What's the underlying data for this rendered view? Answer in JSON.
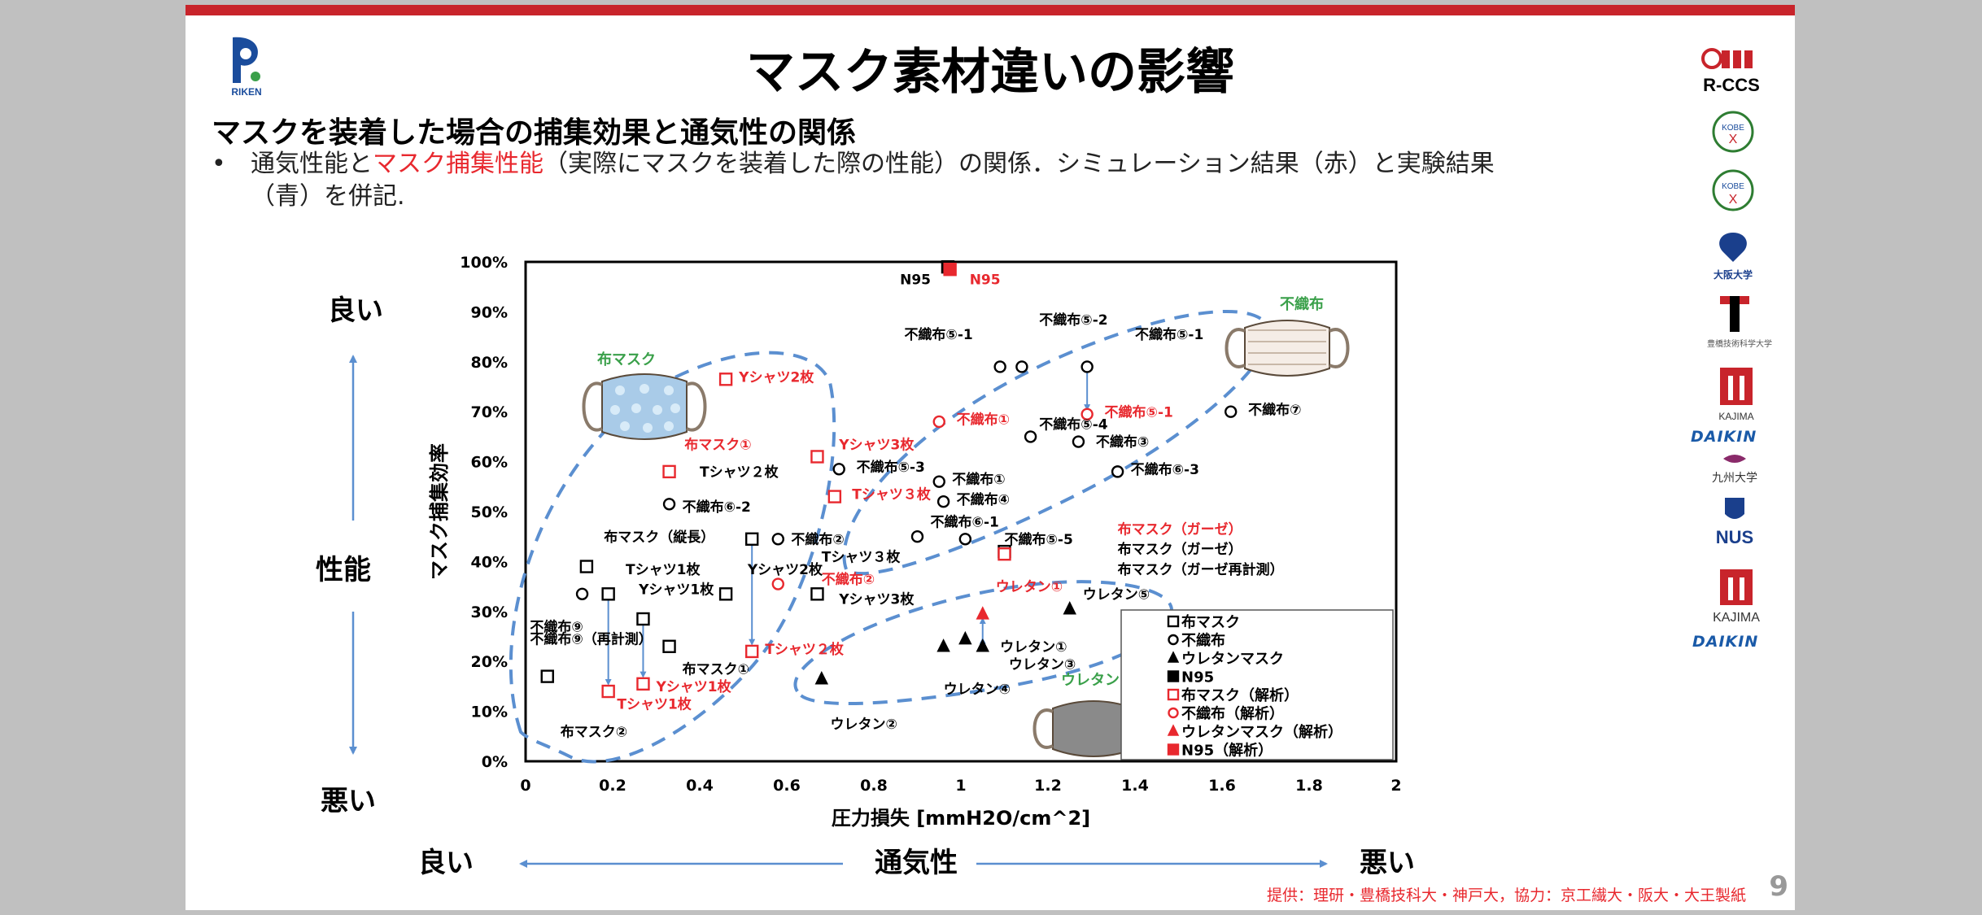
{
  "slide": {
    "title": "マスク素材違いの影響",
    "heading": "マスクを装着した場合の捕集効果と通気性の関係",
    "bullet_dot": "•",
    "bullet_part1": "通気性能と",
    "bullet_part2": "マスク捕集性能",
    "bullet_part3": "（実際にマスクを装着した際の性能）の関係．シミュレーション結果（赤）と実験結果",
    "bullet_line2": "（青）を併記.",
    "source": "提供：理研・豊橋技科大・神戸大，協力：京工繊大・阪大・大王製紙",
    "page": "9",
    "colors": {
      "accent": "#c8242b",
      "red": "#e8282e",
      "arrow": "#5b8fd0",
      "green": "#3aa04a"
    }
  },
  "logos": {
    "riken": "RIKEN",
    "rccs": "R-CCS",
    "kobe": "KOBE",
    "kobe_tech": "KOBE",
    "osaka": "大阪大学",
    "toyohashi": "豊橋技術科学大学",
    "kajima1": "KAJIMA",
    "daikin1": "DAIKIN",
    "kyushu": "九州大学",
    "nus": "NUS",
    "kajima2": "KAJIMA",
    "daikin2": "DAIKIN"
  },
  "axis_side": {
    "y_good": "良い",
    "y_mid": "性能",
    "y_bad": "悪い",
    "x_good": "良い",
    "x_mid": "通気性",
    "x_bad": "悪い"
  },
  "chart_data": {
    "type": "scatter",
    "xlabel": "圧力損失 [mmH2O/cm^2]",
    "ylabel": "マスク捕集効率",
    "xlim": [
      0,
      2
    ],
    "ylim": [
      0,
      1
    ],
    "x_ticks": [
      "0",
      "0.2",
      "0.4",
      "0.6",
      "0.8",
      "1",
      "1.2",
      "1.4",
      "1.6",
      "1.8",
      "2"
    ],
    "y_ticks": [
      "0%",
      "10%",
      "20%",
      "30%",
      "40%",
      "50%",
      "60%",
      "70%",
      "80%",
      "90%",
      "100%"
    ],
    "legend": [
      {
        "name": "布マスク",
        "marker": "square",
        "color": "#000000",
        "filled": false
      },
      {
        "name": "不織布",
        "marker": "circle",
        "color": "#000000",
        "filled": false
      },
      {
        "name": "ウレタンマスク",
        "marker": "triangle",
        "color": "#000000",
        "filled": true
      },
      {
        "name": "N95",
        "marker": "square",
        "color": "#000000",
        "filled": true
      },
      {
        "name": "布マスク（解析）",
        "marker": "square",
        "color": "#e8282e",
        "filled": false
      },
      {
        "name": "不織布（解析）",
        "marker": "circle",
        "color": "#e8282e",
        "filled": false
      },
      {
        "name": "ウレタンマスク（解析）",
        "marker": "triangle",
        "color": "#e8282e",
        "filled": true
      },
      {
        "name": "N95（解析）",
        "marker": "square",
        "color": "#e8282e",
        "filled": true
      }
    ],
    "legend_position": "bottom-right",
    "series": [
      {
        "name": "布マスク",
        "marker": "square",
        "color": "#000000",
        "filled": false,
        "points": [
          [
            0.05,
            0.17
          ],
          [
            0.14,
            0.39
          ],
          [
            0.19,
            0.335
          ],
          [
            0.27,
            0.285
          ],
          [
            0.33,
            0.23
          ],
          [
            0.46,
            0.335
          ],
          [
            0.52,
            0.445
          ],
          [
            0.67,
            0.335
          ],
          [
            1.1,
            0.42
          ]
        ]
      },
      {
        "name": "不織布",
        "marker": "circle",
        "color": "#000000",
        "filled": false,
        "points": [
          [
            0.13,
            0.335
          ],
          [
            0.33,
            0.515
          ],
          [
            0.58,
            0.445
          ],
          [
            0.72,
            0.585
          ],
          [
            0.9,
            0.45
          ],
          [
            0.95,
            0.56
          ],
          [
            0.96,
            0.52
          ],
          [
            1.01,
            0.445
          ],
          [
            1.09,
            0.79
          ],
          [
            1.14,
            0.79
          ],
          [
            1.16,
            0.65
          ],
          [
            1.27,
            0.64
          ],
          [
            1.29,
            0.79
          ],
          [
            1.36,
            0.58
          ],
          [
            1.62,
            0.7
          ]
        ]
      },
      {
        "name": "ウレタンマスク",
        "marker": "triangle",
        "color": "#000000",
        "filled": true,
        "points": [
          [
            0.68,
            0.165
          ],
          [
            0.96,
            0.23
          ],
          [
            1.01,
            0.245
          ],
          [
            1.05,
            0.23
          ],
          [
            1.25,
            0.305
          ]
        ]
      },
      {
        "name": "N95",
        "marker": "square",
        "color": "#000000",
        "filled": true,
        "points": [
          [
            0.97,
            0.99
          ]
        ]
      },
      {
        "name": "布マスク（解析）",
        "marker": "square",
        "color": "#e8282e",
        "filled": false,
        "points": [
          [
            0.19,
            0.14
          ],
          [
            0.27,
            0.155
          ],
          [
            0.33,
            0.58
          ],
          [
            0.46,
            0.765
          ],
          [
            0.52,
            0.22
          ],
          [
            0.67,
            0.61
          ],
          [
            0.71,
            0.53
          ],
          [
            1.1,
            0.415
          ]
        ]
      },
      {
        "name": "不織布（解析）",
        "marker": "circle",
        "color": "#e8282e",
        "filled": false,
        "points": [
          [
            0.58,
            0.355
          ],
          [
            0.95,
            0.68
          ],
          [
            1.29,
            0.695
          ]
        ]
      },
      {
        "name": "ウレタンマスク（解析）",
        "marker": "triangle",
        "color": "#e8282e",
        "filled": true,
        "points": [
          [
            1.05,
            0.295
          ]
        ]
      },
      {
        "name": "N95（解析）",
        "marker": "square",
        "color": "#e8282e",
        "filled": true,
        "points": [
          [
            0.975,
            0.985
          ]
        ]
      }
    ],
    "annotations": [
      {
        "text": "N95",
        "x": 0.86,
        "y": 0.955,
        "color": "black"
      },
      {
        "text": "N95",
        "x": 1.02,
        "y": 0.955,
        "color": "red"
      },
      {
        "text": "Yシャツ2枚",
        "x": 0.49,
        "y": 0.76,
        "color": "red"
      },
      {
        "text": "布マスク①",
        "x": 0.365,
        "y": 0.625,
        "color": "red"
      },
      {
        "text": "Yシャツ3枚",
        "x": 0.72,
        "y": 0.625,
        "color": "red"
      },
      {
        "text": "不織布①",
        "x": 0.99,
        "y": 0.675,
        "color": "red"
      },
      {
        "text": "不織布⑤-1",
        "x": 1.33,
        "y": 0.69,
        "color": "red"
      },
      {
        "text": "Tシャツ３枚",
        "x": 0.75,
        "y": 0.525,
        "color": "red"
      },
      {
        "text": "布マスク（ガーゼ）",
        "x": 1.36,
        "y": 0.455,
        "color": "red"
      },
      {
        "text": "不織布②",
        "x": 0.68,
        "y": 0.355,
        "color": "red"
      },
      {
        "text": "ウレタン①",
        "x": 1.08,
        "y": 0.34,
        "color": "red"
      },
      {
        "text": "Tシャツ２枚",
        "x": 0.55,
        "y": 0.215,
        "color": "red"
      },
      {
        "text": "Yシャツ1枚",
        "x": 0.3,
        "y": 0.14,
        "color": "red"
      },
      {
        "text": "Tシャツ1枚",
        "x": 0.21,
        "y": 0.105,
        "color": "red"
      },
      {
        "text": "不織布⑤-2",
        "x": 1.18,
        "y": 0.875,
        "color": "black"
      },
      {
        "text": "不織布⑤-1",
        "x": 0.87,
        "y": 0.845,
        "color": "black"
      },
      {
        "text": "不織布⑤-1",
        "x": 1.4,
        "y": 0.845,
        "color": "black"
      },
      {
        "text": "不織布⑦",
        "x": 1.66,
        "y": 0.695,
        "color": "black"
      },
      {
        "text": "不織布⑤-4",
        "x": 1.18,
        "y": 0.665,
        "color": "black"
      },
      {
        "text": "不織布③",
        "x": 1.31,
        "y": 0.63,
        "color": "black"
      },
      {
        "text": "Tシャツ２枚",
        "x": 0.4,
        "y": 0.57,
        "color": "black"
      },
      {
        "text": "不織布⑤-3",
        "x": 0.76,
        "y": 0.58,
        "color": "black"
      },
      {
        "text": "不織布⑥-3",
        "x": 1.39,
        "y": 0.575,
        "color": "black"
      },
      {
        "text": "不織布①",
        "x": 0.98,
        "y": 0.555,
        "color": "black"
      },
      {
        "text": "不織布④",
        "x": 0.99,
        "y": 0.515,
        "color": "black"
      },
      {
        "text": "不織布⑥-2",
        "x": 0.36,
        "y": 0.5,
        "color": "black"
      },
      {
        "text": "不織布⑥-1",
        "x": 0.93,
        "y": 0.47,
        "color": "black"
      },
      {
        "text": "布マスク（縦長）",
        "x": 0.18,
        "y": 0.44,
        "color": "black"
      },
      {
        "text": "不織布②",
        "x": 0.61,
        "y": 0.435,
        "color": "black"
      },
      {
        "text": "不織布⑤-5",
        "x": 1.1,
        "y": 0.435,
        "color": "black"
      },
      {
        "text": "布マスク（ガーゼ）",
        "x": 1.36,
        "y": 0.415,
        "color": "black"
      },
      {
        "text": "Tシャツ３枚",
        "x": 0.68,
        "y": 0.4,
        "color": "black"
      },
      {
        "text": "Tシャツ1枚",
        "x": 0.23,
        "y": 0.375,
        "color": "black"
      },
      {
        "text": "Yシャツ2枚",
        "x": 0.51,
        "y": 0.375,
        "color": "black"
      },
      {
        "text": "布マスク（ガーゼ再計測）",
        "x": 1.36,
        "y": 0.375,
        "color": "black"
      },
      {
        "text": "Yシャツ1枚",
        "x": 0.26,
        "y": 0.335,
        "color": "black"
      },
      {
        "text": "ウレタン⑤",
        "x": 1.28,
        "y": 0.325,
        "color": "black"
      },
      {
        "text": "Yシャツ3枚",
        "x": 0.72,
        "y": 0.315,
        "color": "black"
      },
      {
        "text": "不織布⑨",
        "x": 0.01,
        "y": 0.26,
        "color": "black"
      },
      {
        "text": "不織布⑨（再計測）",
        "x": 0.01,
        "y": 0.235,
        "color": "black"
      },
      {
        "text": "ウレタン①",
        "x": 1.09,
        "y": 0.22,
        "color": "black"
      },
      {
        "text": "ウレタン③",
        "x": 1.11,
        "y": 0.185,
        "color": "black"
      },
      {
        "text": "布マスク①",
        "x": 0.36,
        "y": 0.175,
        "color": "black"
      },
      {
        "text": "ウレタン④",
        "x": 0.96,
        "y": 0.135,
        "color": "black"
      },
      {
        "text": "ウレタン②",
        "x": 0.7,
        "y": 0.065,
        "color": "black"
      },
      {
        "text": "布マスク②",
        "x": 0.08,
        "y": 0.05,
        "color": "black"
      }
    ],
    "group_labels": [
      {
        "text": "布マスク",
        "color": "green"
      },
      {
        "text": "不織布",
        "color": "green"
      },
      {
        "text": "ウレタン",
        "color": "green"
      }
    ]
  }
}
